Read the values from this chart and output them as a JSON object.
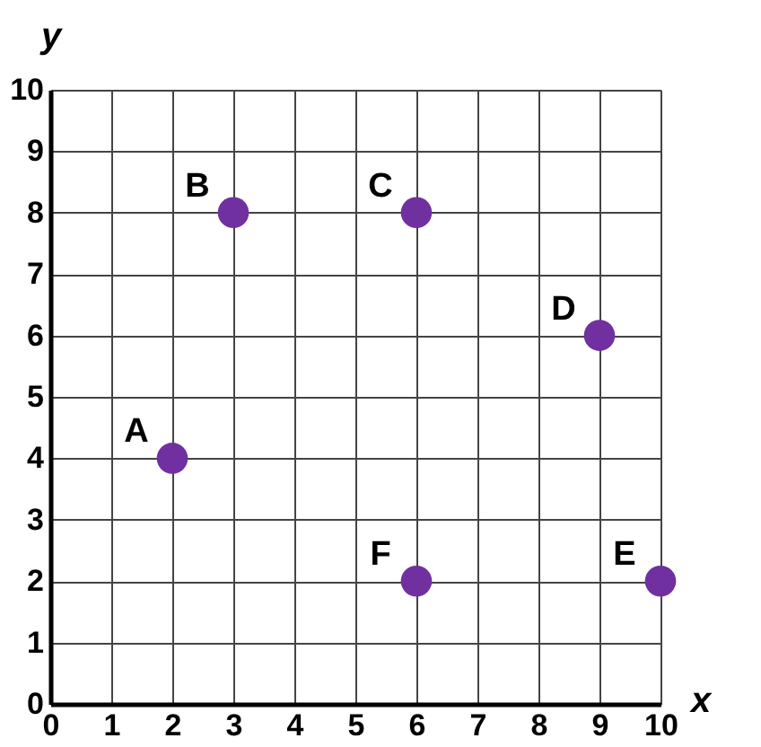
{
  "chart_data": {
    "type": "scatter",
    "x": [
      2,
      3,
      6,
      9,
      10,
      6
    ],
    "series": [
      {
        "color": "#7030a0",
        "values": [
          4,
          8,
          8,
          6,
          2,
          2
        ]
      }
    ],
    "xlabel": "x",
    "ylabel": "y",
    "xlim": [
      0,
      10
    ],
    "ylim": [
      0,
      10
    ],
    "xticks": [
      0,
      1,
      2,
      3,
      4,
      5,
      6,
      7,
      8,
      9,
      10
    ],
    "yticks": [
      0,
      1,
      2,
      3,
      4,
      5,
      6,
      7,
      8,
      9,
      10
    ],
    "grid": true,
    "marker": "circle",
    "annotations": [
      {
        "text": "A",
        "x": 2,
        "y": 4
      },
      {
        "text": "B",
        "x": 3,
        "y": 8
      },
      {
        "text": "C",
        "x": 6,
        "y": 8
      },
      {
        "text": "D",
        "x": 9,
        "y": 6
      },
      {
        "text": "E",
        "x": 10,
        "y": 2
      },
      {
        "text": "F",
        "x": 6,
        "y": 2
      }
    ]
  }
}
